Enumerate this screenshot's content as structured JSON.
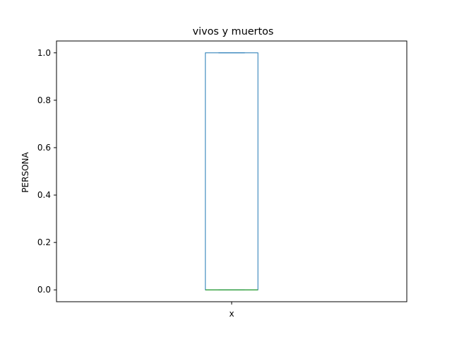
{
  "chart_data": {
    "type": "box",
    "title": "vivos y muertos",
    "xlabel": "",
    "ylabel": "PERSONA",
    "categories": [
      "x"
    ],
    "box": {
      "min": 0.0,
      "q1": 0.0,
      "median": 0.0,
      "q3": 1.0,
      "max": 1.0
    },
    "ylim": [
      -0.05,
      1.05
    ],
    "yticks": [
      0.0,
      0.2,
      0.4,
      0.6,
      0.8,
      1.0
    ],
    "ytick_labels": [
      "0.0",
      "0.2",
      "0.4",
      "0.6",
      "0.8",
      "1.0"
    ],
    "grid": false,
    "colors": {
      "box": "#1f77b4",
      "median": "#2ca02c",
      "axes": "#000000"
    }
  }
}
